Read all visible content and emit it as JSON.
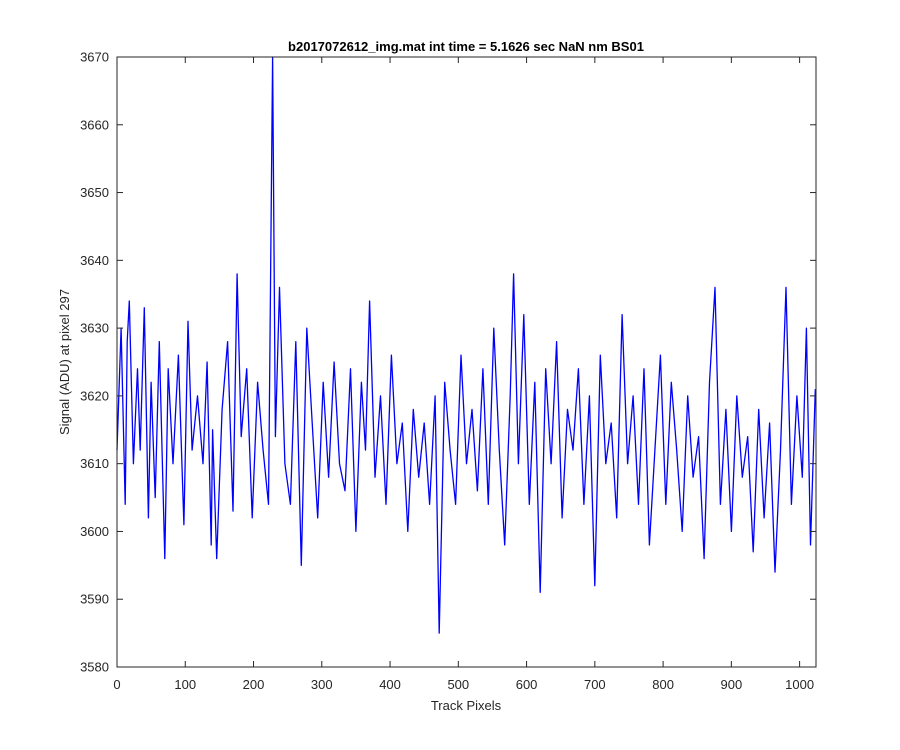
{
  "chart_data": {
    "type": "line",
    "title": "b2017072612_img.mat int time = 5.1626 sec  NaN nm BS01",
    "xlabel": "Track Pixels",
    "ylabel": "Signal (ADU) at pixel 297",
    "xlim": [
      0,
      1024
    ],
    "ylim": [
      3580,
      3670
    ],
    "xticks": [
      0,
      100,
      200,
      300,
      400,
      500,
      600,
      700,
      800,
      900,
      1000
    ],
    "yticks": [
      3580,
      3590,
      3600,
      3610,
      3620,
      3630,
      3640,
      3650,
      3660,
      3670
    ],
    "grid": false,
    "series": [
      {
        "color": "#0000ff",
        "x": [
          0,
          6,
          12,
          15,
          18,
          24,
          30,
          34,
          40,
          46,
          50,
          56,
          62,
          70,
          75,
          82,
          90,
          98,
          104,
          110,
          118,
          126,
          132,
          138,
          140,
          146,
          154,
          162,
          170,
          176,
          182,
          190,
          198,
          206,
          214,
          222,
          228,
          232,
          238,
          246,
          254,
          262,
          270,
          278,
          286,
          294,
          302,
          310,
          318,
          326,
          334,
          342,
          350,
          358,
          364,
          370,
          378,
          386,
          394,
          402,
          410,
          418,
          426,
          434,
          442,
          450,
          458,
          466,
          472,
          480,
          488,
          496,
          504,
          512,
          520,
          528,
          536,
          544,
          552,
          560,
          568,
          576,
          581,
          588,
          596,
          604,
          612,
          620,
          628,
          636,
          644,
          652,
          660,
          668,
          676,
          684,
          692,
          700,
          708,
          716,
          724,
          732,
          740,
          748,
          756,
          764,
          772,
          780,
          788,
          796,
          804,
          812,
          820,
          828,
          836,
          844,
          852,
          860,
          868,
          876,
          884,
          892,
          900,
          908,
          916,
          924,
          932,
          940,
          948,
          956,
          964,
          972,
          980,
          988,
          996,
          1004,
          1010,
          1016,
          1023
        ],
        "y": [
          3612,
          3630,
          3604,
          3628,
          3634,
          3610,
          3624,
          3612,
          3633,
          3602,
          3622,
          3605,
          3628,
          3596,
          3624,
          3610,
          3626,
          3601,
          3631,
          3612,
          3620,
          3610,
          3625,
          3598,
          3615,
          3596,
          3618,
          3628,
          3603,
          3638,
          3614,
          3624,
          3602,
          3622,
          3612,
          3604,
          3670,
          3614,
          3636,
          3610,
          3604,
          3628,
          3595,
          3630,
          3616,
          3602,
          3622,
          3608,
          3625,
          3610,
          3606,
          3624,
          3600,
          3622,
          3612,
          3634,
          3608,
          3620,
          3604,
          3626,
          3610,
          3616,
          3600,
          3618,
          3608,
          3616,
          3604,
          3620,
          3585,
          3622,
          3612,
          3604,
          3626,
          3610,
          3618,
          3606,
          3624,
          3604,
          3630,
          3612,
          3598,
          3620,
          3638,
          3610,
          3632,
          3604,
          3622,
          3591,
          3624,
          3610,
          3628,
          3602,
          3618,
          3612,
          3624,
          3604,
          3620,
          3592,
          3626,
          3610,
          3616,
          3602,
          3632,
          3610,
          3620,
          3604,
          3624,
          3598,
          3612,
          3626,
          3604,
          3622,
          3612,
          3600,
          3620,
          3608,
          3614,
          3596,
          3622,
          3636,
          3604,
          3618,
          3600,
          3620,
          3608,
          3614,
          3597,
          3618,
          3602,
          3616,
          3594,
          3612,
          3636,
          3604,
          3620,
          3608,
          3630,
          3598,
          3621
        ]
      }
    ]
  }
}
